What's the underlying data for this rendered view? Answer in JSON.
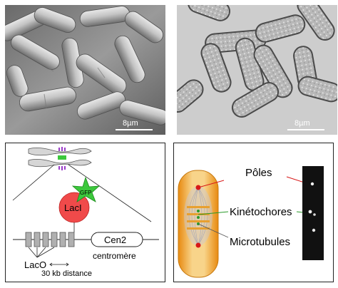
{
  "sem_panel": {
    "scale_label": "8µm"
  },
  "dic_panel": {
    "scale_label": "8µm"
  },
  "construct_panel": {
    "gfp_label": "GFP",
    "laci_label": "LacI",
    "cen_label": "Cen2",
    "centromere_label": "centromère",
    "laco_label": "LacO",
    "distance_label": "30 kb distance"
  },
  "mitosis_panel": {
    "poles_label": "Pôles",
    "kinetochores_label": "Kinétochores",
    "microtubules_label": "Microtubules"
  },
  "colors": {
    "gfp_green": "#3cc83c",
    "laci_red": "#f04a4a",
    "cell_orange": "#f2a630",
    "pole_red": "#d81818"
  }
}
